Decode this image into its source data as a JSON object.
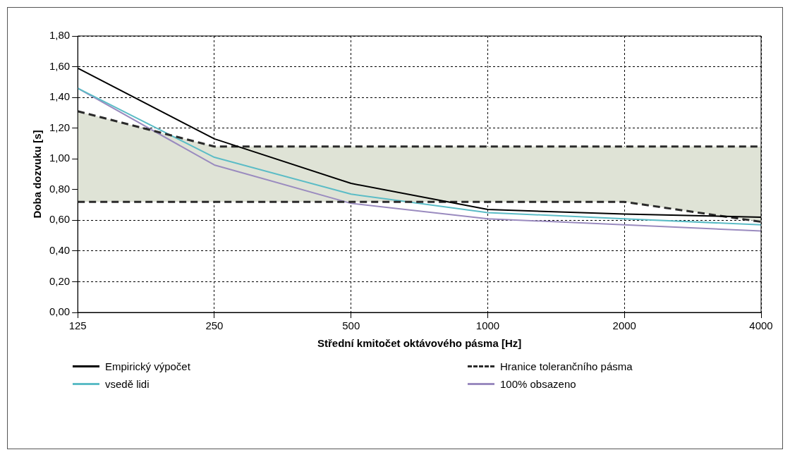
{
  "chart_data": {
    "type": "line",
    "xlabel": "Střední kmitočet oktávového pásma [Hz]",
    "ylabel": "Doba dozvuku [s]",
    "categories": [
      "125",
      "250",
      "500",
      "1000",
      "2000",
      "4000"
    ],
    "ylim": [
      0,
      1.8
    ],
    "yticks": [
      {
        "value": 0,
        "label": "0,00"
      },
      {
        "value": 0.2,
        "label": "0,20"
      },
      {
        "value": 0.4,
        "label": "0,40"
      },
      {
        "value": 0.6,
        "label": "0,60"
      },
      {
        "value": 0.8,
        "label": "0,80"
      },
      {
        "value": 1.0,
        "label": "1,00"
      },
      {
        "value": 1.2,
        "label": "1,20"
      },
      {
        "value": 1.4,
        "label": "1,40"
      },
      {
        "value": 1.6,
        "label": "1,60"
      },
      {
        "value": 1.8,
        "label": "1,80"
      }
    ],
    "grid": true,
    "legend": "bottom",
    "marker": "none",
    "series": [
      {
        "name": "Empirický výpočet",
        "color": "#000000",
        "line_style": "solid",
        "values": [
          1.59,
          1.13,
          0.84,
          0.67,
          0.64,
          0.62
        ]
      },
      {
        "name": "Hranice tolerančního pásma",
        "color": "#2b2b2b",
        "line_style": "dashed",
        "values": [
          1.31,
          1.08,
          1.08,
          1.08,
          1.08,
          1.08
        ]
      },
      {
        "color": "#2b2b2b",
        "line_style": "dashed",
        "values": [
          0.72,
          0.72,
          0.72,
          0.72,
          0.72,
          0.59
        ]
      },
      {
        "color": "#dfe3d6",
        "values": [
          null,
          null,
          null,
          null,
          null,
          null
        ],
        "lower": [
          0.72,
          0.72,
          0.72,
          0.72,
          0.72,
          0.59
        ],
        "upper": [
          1.31,
          1.08,
          1.08,
          1.08,
          1.08,
          1.08
        ]
      },
      {
        "name": "vsedě lidi",
        "color": "#5bbcc6",
        "line_style": "solid",
        "values": [
          1.46,
          1.01,
          0.77,
          0.65,
          0.61,
          0.57
        ]
      },
      {
        "name": "100% obsazeno",
        "color": "#9a8bbf",
        "line_style": "solid",
        "values": [
          1.46,
          0.96,
          0.71,
          0.61,
          0.57,
          0.53
        ]
      }
    ]
  }
}
